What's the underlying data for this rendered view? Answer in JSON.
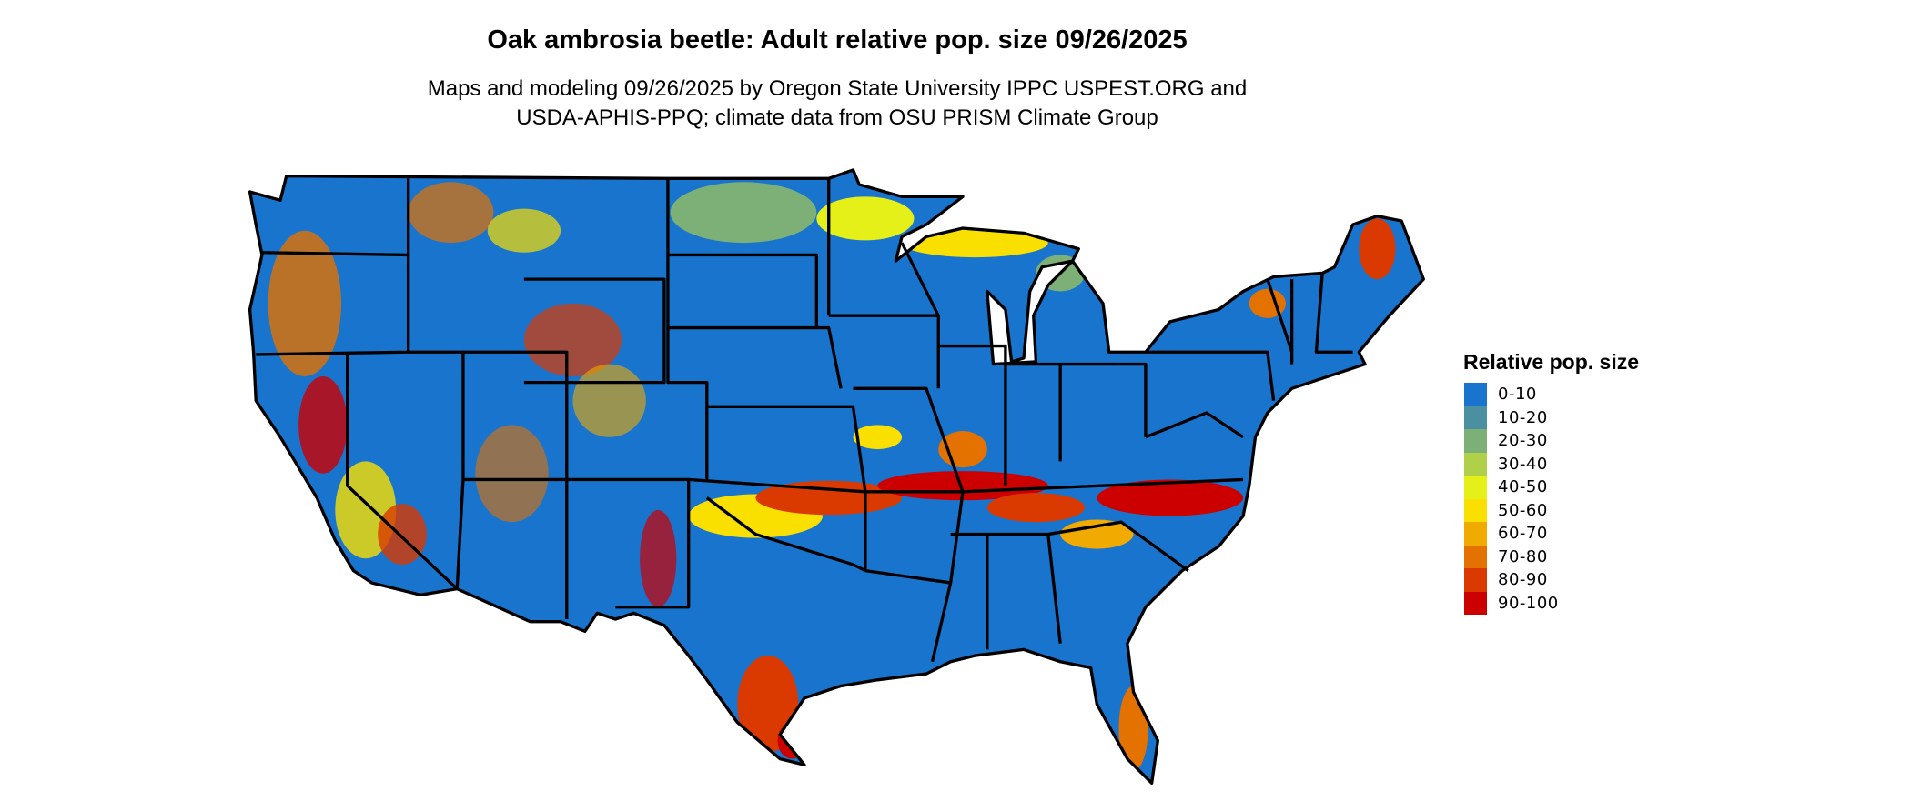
{
  "title": "Oak ambrosia beetle: Adult relative pop. size 09/26/2025",
  "subtitle_line1": "Maps and modeling 09/26/2025 by Oregon State University IPPC USPEST.ORG and",
  "subtitle_line2": "USDA-APHIS-PPQ; climate data from OSU PRISM Climate Group",
  "legend": {
    "title": "Relative pop. size",
    "items": [
      {
        "label": "0-10",
        "color": "#1874cd"
      },
      {
        "label": "10-20",
        "color": "#4a90a0"
      },
      {
        "label": "20-30",
        "color": "#7db076"
      },
      {
        "label": "30-40",
        "color": "#b1d04a"
      },
      {
        "label": "40-50",
        "color": "#e5f018"
      },
      {
        "label": "50-60",
        "color": "#f9e000"
      },
      {
        "label": "60-70",
        "color": "#f0aa00"
      },
      {
        "label": "70-80",
        "color": "#e37200"
      },
      {
        "label": "80-90",
        "color": "#da3a00"
      },
      {
        "label": "90-100",
        "color": "#cd0000"
      }
    ]
  }
}
